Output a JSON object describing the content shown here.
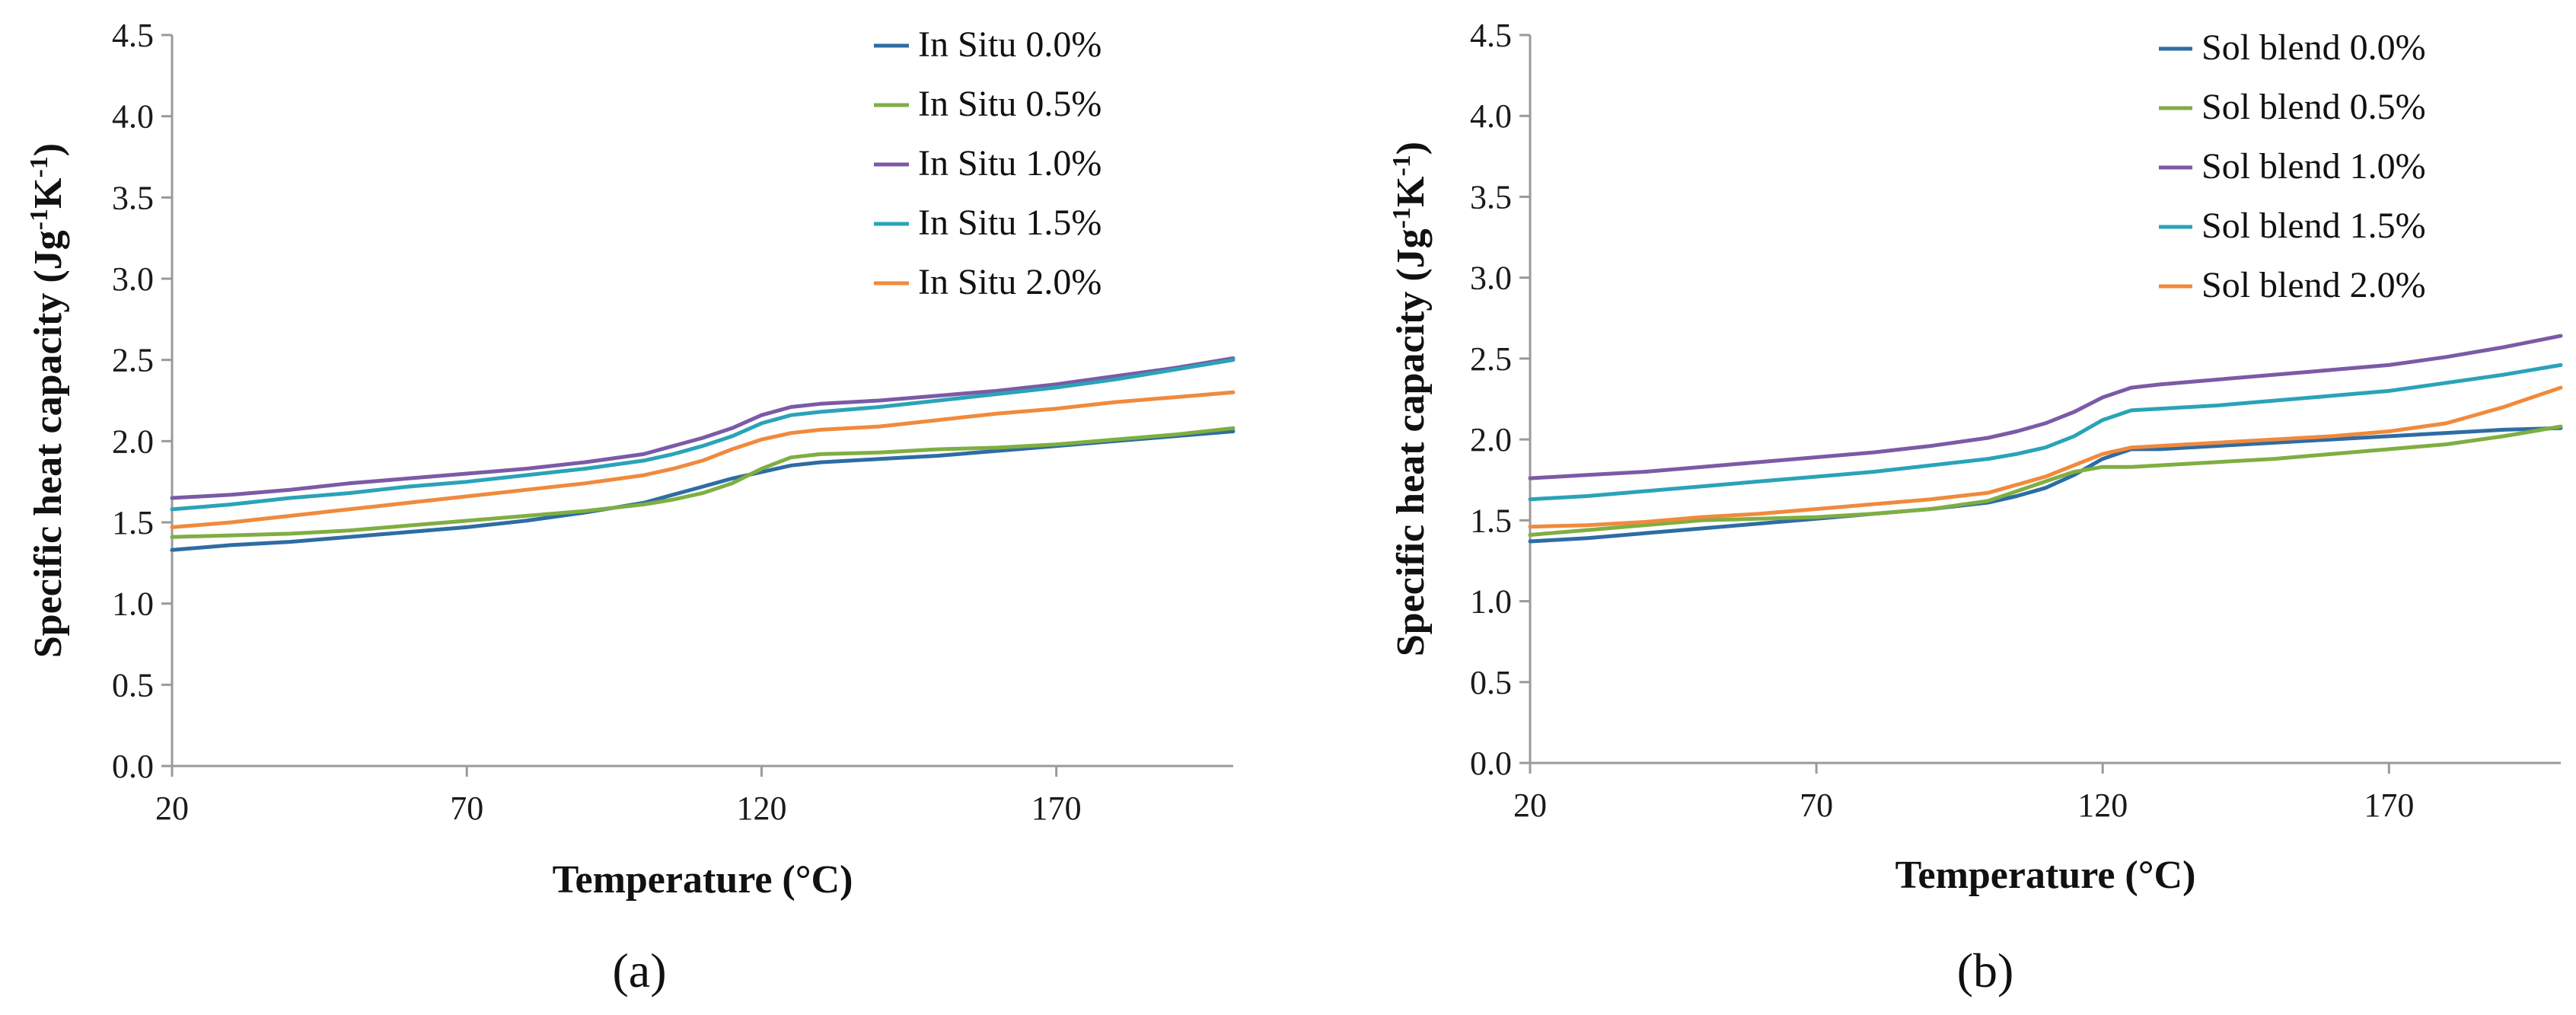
{
  "chart_data": [
    {
      "type": "line",
      "panel_label": "(a)",
      "xlabel": "Temperature (°C)",
      "ylabel": "Specific heat capacity (Jg-1K-1)",
      "ylabel_parts": {
        "main": "Specific heat capacity (Jg",
        "sup1": "-1",
        "mid": "K",
        "sup2": "-1",
        "end": ")"
      },
      "xlim": [
        20,
        200
      ],
      "ylim": [
        0,
        4.5
      ],
      "xticks": [
        "20",
        "70",
        "120",
        "170"
      ],
      "yticks": [
        "0.0",
        "0.5",
        "1.0",
        "1.5",
        "2.0",
        "2.5",
        "3.0",
        "3.5",
        "4.0",
        "4.5"
      ],
      "legend_position": "top-right",
      "x": [
        20,
        30,
        40,
        50,
        60,
        70,
        80,
        90,
        100,
        105,
        110,
        115,
        120,
        125,
        130,
        140,
        150,
        160,
        170,
        180,
        190,
        200
      ],
      "series": [
        {
          "name": "In Situ 0.0%",
          "color": "#2e6ca4",
          "values": [
            1.33,
            1.36,
            1.38,
            1.41,
            1.44,
            1.47,
            1.51,
            1.56,
            1.62,
            1.67,
            1.72,
            1.77,
            1.81,
            1.85,
            1.87,
            1.89,
            1.91,
            1.94,
            1.97,
            2.0,
            2.03,
            2.06
          ]
        },
        {
          "name": "In Situ 0.5%",
          "color": "#7fae42",
          "values": [
            1.41,
            1.42,
            1.43,
            1.45,
            1.48,
            1.51,
            1.54,
            1.57,
            1.61,
            1.64,
            1.68,
            1.74,
            1.83,
            1.9,
            1.92,
            1.93,
            1.95,
            1.96,
            1.98,
            2.01,
            2.04,
            2.08
          ]
        },
        {
          "name": "In Situ 1.0%",
          "color": "#7b5aa6",
          "values": [
            1.65,
            1.67,
            1.7,
            1.74,
            1.77,
            1.8,
            1.83,
            1.87,
            1.92,
            1.97,
            2.02,
            2.08,
            2.16,
            2.21,
            2.23,
            2.25,
            2.28,
            2.31,
            2.35,
            2.4,
            2.45,
            2.51
          ]
        },
        {
          "name": "In Situ 1.5%",
          "color": "#2aa3b8",
          "values": [
            1.58,
            1.61,
            1.65,
            1.68,
            1.72,
            1.75,
            1.79,
            1.83,
            1.88,
            1.92,
            1.97,
            2.03,
            2.11,
            2.16,
            2.18,
            2.21,
            2.25,
            2.29,
            2.33,
            2.38,
            2.44,
            2.5
          ]
        },
        {
          "name": "In Situ 2.0%",
          "color": "#f08a3c",
          "values": [
            1.47,
            1.5,
            1.54,
            1.58,
            1.62,
            1.66,
            1.7,
            1.74,
            1.79,
            1.83,
            1.88,
            1.95,
            2.01,
            2.05,
            2.07,
            2.09,
            2.13,
            2.17,
            2.2,
            2.24,
            2.27,
            2.3
          ]
        }
      ]
    },
    {
      "type": "line",
      "panel_label": "(b)",
      "xlabel": "Temperature (°C)",
      "ylabel": "Specific heat capacity (Jg-1K-1)",
      "ylabel_parts": {
        "main": "Specific heat capacity (Jg",
        "sup1": "-1",
        "mid": "K",
        "sup2": "-1",
        "end": ")"
      },
      "xlim": [
        20,
        200
      ],
      "ylim": [
        0,
        4.5
      ],
      "xticks": [
        "20",
        "70",
        "120",
        "170"
      ],
      "yticks": [
        "0.0",
        "0.5",
        "1.0",
        "1.5",
        "2.0",
        "2.5",
        "3.0",
        "3.5",
        "4.0",
        "4.5"
      ],
      "legend_position": "top-right",
      "x": [
        20,
        30,
        40,
        50,
        60,
        70,
        80,
        90,
        100,
        105,
        110,
        115,
        120,
        125,
        130,
        140,
        150,
        160,
        170,
        180,
        190,
        200
      ],
      "series": [
        {
          "name": "Sol blend 0.0%",
          "color": "#2e6ca4",
          "values": [
            1.37,
            1.39,
            1.42,
            1.45,
            1.48,
            1.51,
            1.54,
            1.57,
            1.61,
            1.65,
            1.7,
            1.78,
            1.88,
            1.94,
            1.94,
            1.96,
            1.98,
            2.0,
            2.02,
            2.04,
            2.06,
            2.07
          ]
        },
        {
          "name": "Sol blend 0.5%",
          "color": "#7fae42",
          "values": [
            1.41,
            1.44,
            1.47,
            1.5,
            1.51,
            1.52,
            1.54,
            1.57,
            1.62,
            1.68,
            1.74,
            1.8,
            1.83,
            1.83,
            1.84,
            1.86,
            1.88,
            1.91,
            1.94,
            1.97,
            2.02,
            2.08
          ]
        },
        {
          "name": "Sol blend 1.0%",
          "color": "#7b5aa6",
          "values": [
            1.76,
            1.78,
            1.8,
            1.83,
            1.86,
            1.89,
            1.92,
            1.96,
            2.01,
            2.05,
            2.1,
            2.17,
            2.26,
            2.32,
            2.34,
            2.37,
            2.4,
            2.43,
            2.46,
            2.51,
            2.57,
            2.64
          ]
        },
        {
          "name": "Sol blend 1.5%",
          "color": "#2aa3b8",
          "values": [
            1.63,
            1.65,
            1.68,
            1.71,
            1.74,
            1.77,
            1.8,
            1.84,
            1.88,
            1.91,
            1.95,
            2.02,
            2.12,
            2.18,
            2.19,
            2.21,
            2.24,
            2.27,
            2.3,
            2.35,
            2.4,
            2.46
          ]
        },
        {
          "name": "Sol blend 2.0%",
          "color": "#f08a3c",
          "values": [
            1.46,
            1.47,
            1.49,
            1.52,
            1.54,
            1.57,
            1.6,
            1.63,
            1.67,
            1.72,
            1.77,
            1.84,
            1.91,
            1.95,
            1.96,
            1.98,
            2.0,
            2.02,
            2.05,
            2.1,
            2.2,
            2.32
          ]
        }
      ]
    }
  ]
}
